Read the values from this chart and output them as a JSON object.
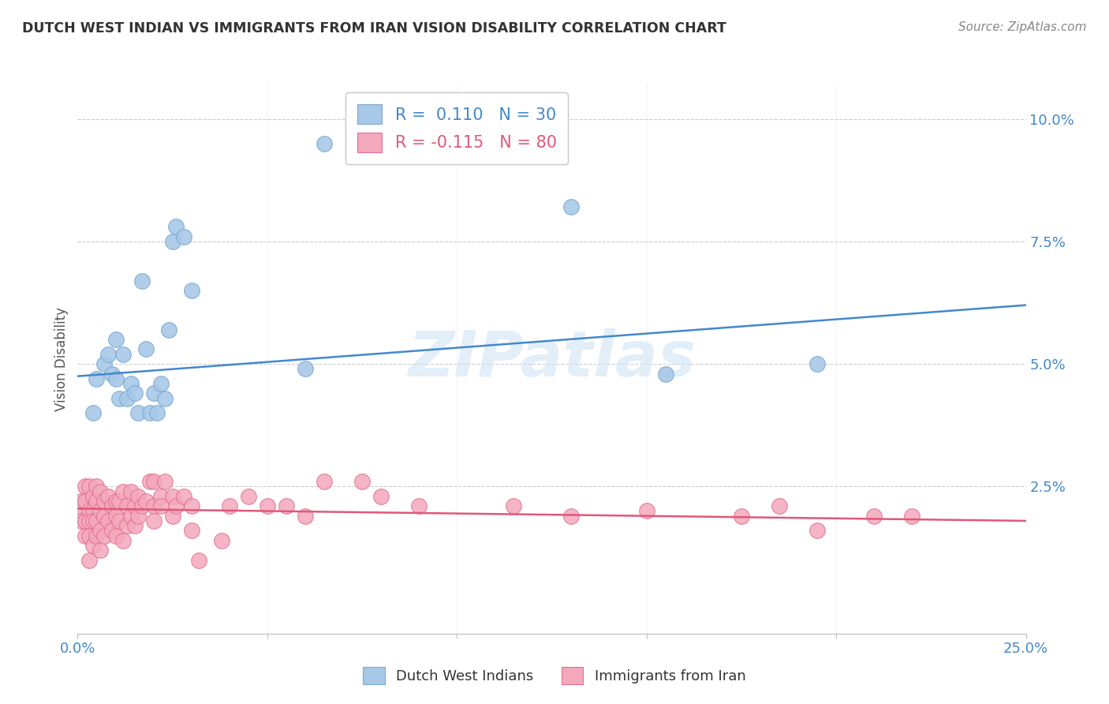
{
  "title": "DUTCH WEST INDIAN VS IMMIGRANTS FROM IRAN VISION DISABILITY CORRELATION CHART",
  "source": "Source: ZipAtlas.com",
  "ylabel": "Vision Disability",
  "xlim": [
    0.0,
    0.25
  ],
  "ylim": [
    -0.005,
    0.107
  ],
  "blue_color": "#A8C8E8",
  "blue_edge_color": "#7AAAD0",
  "pink_color": "#F4A8BC",
  "pink_edge_color": "#E07090",
  "blue_line_color": "#4488CC",
  "pink_line_color": "#E05878",
  "watermark": "ZIPatlas",
  "blue_scatter_x": [
    0.004,
    0.005,
    0.007,
    0.008,
    0.009,
    0.01,
    0.01,
    0.011,
    0.012,
    0.013,
    0.014,
    0.015,
    0.016,
    0.017,
    0.018,
    0.019,
    0.02,
    0.021,
    0.022,
    0.023,
    0.024,
    0.025,
    0.026,
    0.028,
    0.03,
    0.06,
    0.065,
    0.13,
    0.155,
    0.195
  ],
  "blue_scatter_y": [
    0.04,
    0.047,
    0.05,
    0.052,
    0.048,
    0.055,
    0.047,
    0.043,
    0.052,
    0.043,
    0.046,
    0.044,
    0.04,
    0.067,
    0.053,
    0.04,
    0.044,
    0.04,
    0.046,
    0.043,
    0.057,
    0.075,
    0.078,
    0.076,
    0.065,
    0.049,
    0.095,
    0.082,
    0.048,
    0.05
  ],
  "pink_scatter_x": [
    0.001,
    0.001,
    0.001,
    0.002,
    0.002,
    0.002,
    0.002,
    0.003,
    0.003,
    0.003,
    0.003,
    0.003,
    0.004,
    0.004,
    0.004,
    0.004,
    0.005,
    0.005,
    0.005,
    0.005,
    0.006,
    0.006,
    0.006,
    0.006,
    0.007,
    0.007,
    0.007,
    0.008,
    0.008,
    0.009,
    0.009,
    0.01,
    0.01,
    0.01,
    0.011,
    0.011,
    0.012,
    0.012,
    0.013,
    0.013,
    0.014,
    0.014,
    0.015,
    0.015,
    0.016,
    0.016,
    0.017,
    0.018,
    0.019,
    0.02,
    0.02,
    0.02,
    0.022,
    0.022,
    0.023,
    0.025,
    0.025,
    0.026,
    0.028,
    0.03,
    0.03,
    0.032,
    0.038,
    0.04,
    0.045,
    0.05,
    0.055,
    0.06,
    0.065,
    0.075,
    0.08,
    0.09,
    0.115,
    0.13,
    0.15,
    0.175,
    0.185,
    0.195,
    0.21,
    0.22
  ],
  "pink_scatter_y": [
    0.02,
    0.022,
    0.018,
    0.025,
    0.022,
    0.018,
    0.015,
    0.025,
    0.02,
    0.018,
    0.015,
    0.01,
    0.023,
    0.02,
    0.018,
    0.013,
    0.025,
    0.022,
    0.018,
    0.015,
    0.024,
    0.02,
    0.016,
    0.012,
    0.022,
    0.019,
    0.015,
    0.023,
    0.018,
    0.021,
    0.016,
    0.022,
    0.019,
    0.015,
    0.022,
    0.018,
    0.024,
    0.014,
    0.021,
    0.017,
    0.024,
    0.019,
    0.021,
    0.017,
    0.023,
    0.019,
    0.021,
    0.022,
    0.026,
    0.021,
    0.018,
    0.026,
    0.023,
    0.021,
    0.026,
    0.023,
    0.019,
    0.021,
    0.023,
    0.021,
    0.016,
    0.01,
    0.014,
    0.021,
    0.023,
    0.021,
    0.021,
    0.019,
    0.026,
    0.026,
    0.023,
    0.021,
    0.021,
    0.019,
    0.02,
    0.019,
    0.021,
    0.016,
    0.019,
    0.019
  ],
  "blue_trend_y_start": 0.0475,
  "blue_trend_y_end": 0.062,
  "pink_trend_y_start": 0.0205,
  "pink_trend_y_end": 0.018,
  "legend_label_blue": "Dutch West Indians",
  "legend_label_pink": "Immigrants from Iran"
}
